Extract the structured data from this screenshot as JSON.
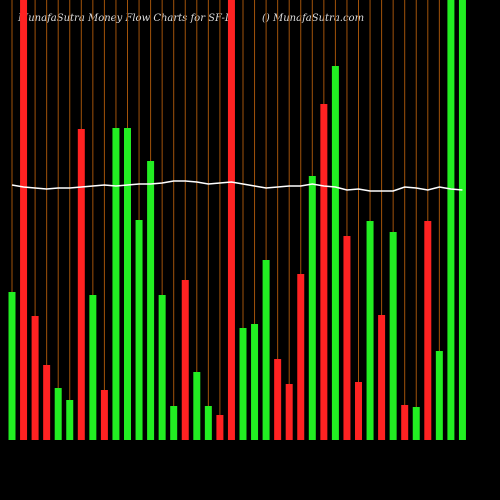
{
  "chart_data": {
    "type": "bar",
    "title": "MunafaSutra  Money Flow  Charts for SF-D",
    "source": "() MunafaSutra.com",
    "values": [
      148,
      440,
      124,
      75,
      52,
      40,
      311,
      145,
      50,
      312,
      312,
      220,
      279,
      145,
      34,
      160,
      68,
      34,
      25,
      440,
      112,
      116,
      180,
      81,
      56,
      166,
      264,
      336,
      374,
      204,
      58,
      219,
      125,
      208,
      35,
      33,
      219,
      89,
      440,
      440
    ],
    "colors": [
      "#22ee22",
      "#ff2222",
      "#ff2222",
      "#ff2222",
      "#22ee22",
      "#22ee22",
      "#ff2222",
      "#22ee22",
      "#ff2222",
      "#22ee22",
      "#22ee22",
      "#22ee22",
      "#22ee22",
      "#22ee22",
      "#22ee22",
      "#ff2222",
      "#22ee22",
      "#22ee22",
      "#ff2222",
      "#ff2222",
      "#22ee22",
      "#22ee22",
      "#22ee22",
      "#ff2222",
      "#ff2222",
      "#ff2222",
      "#22ee22",
      "#ff2222",
      "#22ee22",
      "#ff2222",
      "#ff2222",
      "#22ee22",
      "#ff2222",
      "#22ee22",
      "#ff2222",
      "#22ee22",
      "#ff2222",
      "#22ee22",
      "#22ee22",
      "#22ee22"
    ],
    "line": {
      "color": "#ffffff",
      "values": [
        255,
        253,
        252,
        251,
        252,
        252,
        253,
        254,
        255,
        254,
        255,
        256,
        256,
        257,
        259,
        259,
        258,
        256,
        257,
        258,
        256,
        254,
        252,
        253,
        254,
        254,
        256,
        254,
        253,
        250,
        251,
        249,
        249,
        249,
        253,
        252,
        250,
        253,
        251,
        250
      ]
    },
    "ylim": [
      0,
      440
    ]
  }
}
